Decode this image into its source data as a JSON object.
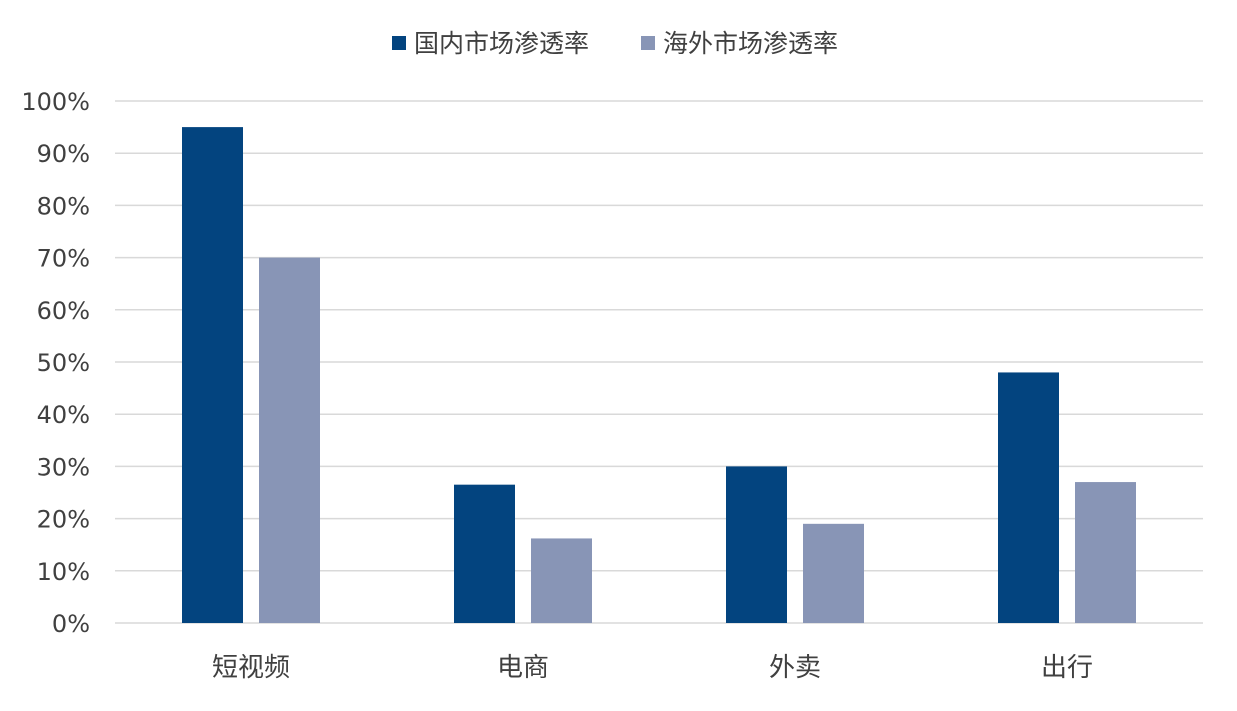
{
  "chart_data": {
    "type": "bar",
    "title": "",
    "xlabel": "",
    "ylabel": "",
    "categories": [
      "短视频",
      "电商",
      "外卖",
      "出行"
    ],
    "series": [
      {
        "name": "国内市场渗透率",
        "values": [
          0.95,
          0.265,
          0.3,
          0.48
        ],
        "color": "#03447F"
      },
      {
        "name": "海外市场渗透率",
        "values": [
          0.7,
          0.162,
          0.19,
          0.27
        ],
        "color": "#8895B6"
      }
    ],
    "ylim": [
      0,
      1.0
    ],
    "yticks": [
      0,
      0.1,
      0.2,
      0.3,
      0.4,
      0.5,
      0.6,
      0.7,
      0.8,
      0.9,
      1.0
    ],
    "ytick_labels": [
      "0%",
      "10%",
      "20%",
      "30%",
      "40%",
      "50%",
      "60%",
      "70%",
      "80%",
      "90%",
      "100%"
    ],
    "grid": true,
    "legend": "top-center",
    "gridline_color": "#D9D9D9"
  }
}
